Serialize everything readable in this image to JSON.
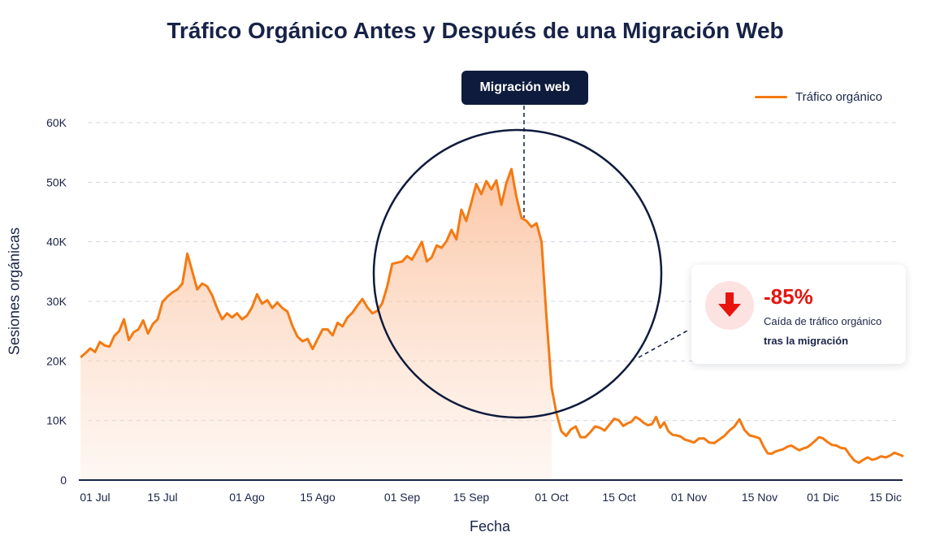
{
  "chart_data": {
    "type": "area",
    "title": "Tráfico Orgánico Antes y Después de una Migración Web",
    "xlabel": "Fecha",
    "ylabel": "Sesiones orgánicas",
    "ylim": [
      0,
      60000
    ],
    "grid": true,
    "legend_position": "top-right",
    "y_ticks": [
      "0",
      "10K",
      "20K",
      "30K",
      "40K",
      "50K",
      "60K"
    ],
    "y_tick_values": [
      0,
      10000,
      20000,
      30000,
      40000,
      50000,
      60000
    ],
    "x_ticks": [
      {
        "label": "01 Jul",
        "date": "07-01"
      },
      {
        "label": "15 Jul",
        "date": "07-15"
      },
      {
        "label": "01 Ago",
        "date": "08-01"
      },
      {
        "label": "15 Ago",
        "date": "08-15"
      },
      {
        "label": "01 Sep",
        "date": "09-01"
      },
      {
        "label": "15 Sep",
        "date": "09-15"
      },
      {
        "label": "01 Oct",
        "date": "10-01"
      },
      {
        "label": "15 Oct",
        "date": "10-15"
      },
      {
        "label": "01 Nov",
        "date": "11-01"
      },
      {
        "label": "15 Nov",
        "date": "11-15"
      },
      {
        "label": "01 Dic",
        "date": "12-01"
      },
      {
        "label": "15 Dic",
        "date": "12-15"
      }
    ],
    "series": [
      {
        "name": "Tráfico orgánico",
        "color": "#f47a12",
        "dates": [
          "06-28",
          "06-29",
          "06-30",
          "07-01",
          "07-02",
          "07-03",
          "07-04",
          "07-05",
          "07-06",
          "07-07",
          "07-08",
          "07-09",
          "07-10",
          "07-11",
          "07-12",
          "07-13",
          "07-14",
          "07-15",
          "07-16",
          "07-17",
          "07-18",
          "07-19",
          "07-20",
          "07-21",
          "07-22",
          "07-23",
          "07-24",
          "07-25",
          "07-26",
          "07-27",
          "07-28",
          "07-29",
          "07-30",
          "07-31",
          "08-01",
          "08-02",
          "08-03",
          "08-04",
          "08-05",
          "08-06",
          "08-07",
          "08-08",
          "08-09",
          "08-10",
          "08-11",
          "08-12",
          "08-13",
          "08-14",
          "08-15",
          "08-16",
          "08-17",
          "08-18",
          "08-19",
          "08-20",
          "08-21",
          "08-22",
          "08-23",
          "08-24",
          "08-25",
          "08-26",
          "08-27",
          "08-28",
          "08-29",
          "08-30",
          "08-31",
          "09-01",
          "09-02",
          "09-03",
          "09-04",
          "09-05",
          "09-06",
          "09-07",
          "09-08",
          "09-09",
          "09-10",
          "09-11",
          "09-12",
          "09-13",
          "09-14",
          "09-15",
          "09-16",
          "09-17",
          "09-18",
          "09-19",
          "09-20",
          "09-21",
          "09-22",
          "09-23",
          "09-24",
          "09-25",
          "09-26",
          "09-27",
          "09-28",
          "09-29",
          "09-30",
          "10-01",
          "10-02",
          "10-03",
          "10-04",
          "10-05",
          "10-06",
          "10-07",
          "10-08",
          "10-09",
          "10-10",
          "10-11",
          "10-12",
          "10-13",
          "10-14",
          "10-15",
          "10-16",
          "10-17",
          "10-18",
          "10-19",
          "10-20",
          "10-21",
          "10-22",
          "10-23",
          "10-24",
          "10-25",
          "10-26",
          "10-27",
          "10-28",
          "10-29",
          "10-30",
          "10-31",
          "11-01",
          "11-02",
          "11-03",
          "11-04",
          "11-05",
          "11-06",
          "11-07",
          "11-08",
          "11-09",
          "11-10",
          "11-11",
          "11-12",
          "11-13",
          "11-14",
          "11-15",
          "11-16",
          "11-17",
          "11-18",
          "11-19",
          "11-20",
          "11-21",
          "11-22",
          "11-23",
          "11-24",
          "11-25",
          "11-26",
          "11-27",
          "11-28",
          "11-29",
          "11-30",
          "12-01",
          "12-02",
          "12-03",
          "12-04",
          "12-05",
          "12-06",
          "12-07",
          "12-08",
          "12-09",
          "12-10",
          "12-11",
          "12-12",
          "12-13",
          "12-14",
          "12-15",
          "12-16",
          "12-17",
          "12-18",
          "12-19"
        ],
        "values": [
          20600,
          21300,
          22100,
          21500,
          23200,
          22600,
          22400,
          24200,
          25000,
          27000,
          23500,
          24800,
          25300,
          26800,
          24600,
          26200,
          27000,
          29900,
          30800,
          31500,
          32000,
          33000,
          38000,
          35000,
          32000,
          33000,
          32500,
          31000,
          28800,
          27000,
          28000,
          27300,
          28000,
          27000,
          27600,
          29000,
          31200,
          29600,
          30200,
          28900,
          29800,
          28900,
          28300,
          25900,
          24100,
          23300,
          23700,
          22000,
          23700,
          25300,
          25300,
          24300,
          26400,
          25800,
          27300,
          28100,
          29300,
          30400,
          29000,
          28000,
          28400,
          29700,
          32500,
          36300,
          36500,
          36700,
          37600,
          37000,
          38500,
          40000,
          36700,
          37400,
          39400,
          39000,
          40100,
          42000,
          40400,
          45400,
          43500,
          46500,
          49700,
          48000,
          50200,
          48800,
          50300,
          46200,
          49900,
          52200,
          47500,
          44000,
          43500,
          42500,
          43100,
          40000,
          27000,
          15500,
          11200,
          8200,
          7400,
          8500,
          9000,
          7200,
          7200,
          8000,
          9000,
          8800,
          8300,
          9300,
          10300,
          10000,
          9100,
          9500,
          9800,
          10600,
          10200,
          9600,
          9200,
          9400,
          10600,
          8800,
          9700,
          8200,
          7600,
          7500,
          7300,
          6800,
          6600,
          6300,
          7000,
          7000,
          6300,
          6200,
          6800,
          7400,
          8300,
          9000,
          10200,
          8400,
          7500,
          7300,
          7000,
          5600,
          4500,
          4400,
          4800,
          5000,
          5200,
          5600,
          5800,
          5400,
          5000,
          5300,
          5500,
          6000,
          6600,
          7200,
          7000,
          6400,
          5900,
          5800,
          5400,
          5300,
          4200,
          3300,
          2900,
          3400,
          3800,
          3400,
          3600,
          4000,
          3800,
          4100,
          4600,
          4300,
          4000
        ]
      }
    ],
    "shaded_until": "10-01",
    "annotations": {
      "migration_label": "Migración web",
      "migration_date": "09-27",
      "callout_percent": "-85%",
      "callout_line1": "Caída de tráfico orgánico",
      "callout_line2": "tras la migración",
      "callout_icon": "arrow-down-icon",
      "callout_color": "#e8140e"
    }
  }
}
